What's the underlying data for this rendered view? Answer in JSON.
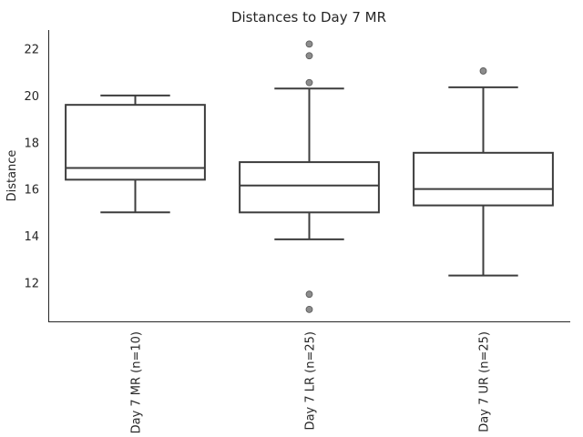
{
  "chart_data": {
    "type": "box",
    "title": "Distances to Day 7 MR",
    "xlabel": "",
    "ylabel": "Distance",
    "ylim": [
      10.3,
      22.8
    ],
    "yticks": [
      12,
      14,
      16,
      18,
      20,
      22
    ],
    "grid": false,
    "categories": [
      "Day 7 MR (n=10)",
      "Day 7 LR (n=25)",
      "Day 7 UR (n=25)"
    ],
    "boxes": [
      {
        "q1": 16.4,
        "median": 16.9,
        "q3": 19.6,
        "whisker_low": 15.0,
        "whisker_high": 20.0,
        "outliers": []
      },
      {
        "q1": 15.0,
        "median": 16.15,
        "q3": 17.15,
        "whisker_low": 13.85,
        "whisker_high": 20.3,
        "outliers": [
          22.2,
          21.7,
          20.55,
          11.5,
          10.85
        ]
      },
      {
        "q1": 15.3,
        "median": 16.0,
        "q3": 17.55,
        "whisker_low": 12.3,
        "whisker_high": 20.35,
        "outliers": [
          21.05
        ]
      }
    ]
  }
}
